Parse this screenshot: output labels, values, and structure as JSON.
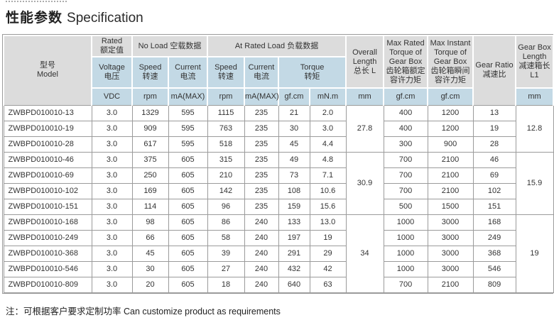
{
  "title": {
    "zh": "性能参数",
    "en": "Specification"
  },
  "footer": {
    "note": "注：可根据客户要求定制功率 Can customize product as requirements"
  },
  "colors": {
    "header_gray": "#dcdcdc",
    "header_blue": "#c3d9e5",
    "grid": "#9b9b9b",
    "text": "#333333"
  },
  "header": {
    "model": "型号\nModel",
    "rated": "Rated\n额定值",
    "no_load": "No Load 空载数据",
    "at_rated_load": "At Rated Load 负载数据",
    "overall_length": "Overall\nLength\n总长 L",
    "max_rated_torque": "Max Rated\nTorque of\nGear Box\n齿轮箱额定\n容许力矩",
    "max_instant_torque": "Max Instant\nTorque of\nGear Box\n齿轮箱瞬间\n容许力矩",
    "gear_ratio": "Gear Ratio\n减速比",
    "gear_box_length": "Gear Box\nLength\n减速箱长\nL1",
    "voltage": "Voltage\n电压",
    "speed": "Speed\n转速",
    "current": "Current\n电流",
    "torque": "Torque\n转矩",
    "units": {
      "vdc": "VDC",
      "rpm": "rpm",
      "ma_max": "mA(MAX)",
      "gf_cm": "gf.cm",
      "mn_m": "mN.m",
      "mm": "mm"
    }
  },
  "rows": [
    {
      "model": "ZWBPD010010-13",
      "voltage": "3.0",
      "no_load_speed": "1329",
      "no_load_current": "595",
      "rated_speed": "1115",
      "rated_current": "235",
      "torque_gfcm": "21",
      "torque_mnm": "2.0",
      "max_rated_torque": "400",
      "max_instant_torque": "1200",
      "gear_ratio": "13"
    },
    {
      "model": "ZWBPD010010-19",
      "voltage": "3.0",
      "no_load_speed": "909",
      "no_load_current": "595",
      "rated_speed": "763",
      "rated_current": "235",
      "torque_gfcm": "30",
      "torque_mnm": "3.0",
      "max_rated_torque": "400",
      "max_instant_torque": "1200",
      "gear_ratio": "19"
    },
    {
      "model": "ZWBPD010010-28",
      "voltage": "3.0",
      "no_load_speed": "617",
      "no_load_current": "595",
      "rated_speed": "518",
      "rated_current": "235",
      "torque_gfcm": "45",
      "torque_mnm": "4.4",
      "max_rated_torque": "300",
      "max_instant_torque": "900",
      "gear_ratio": "28"
    },
    {
      "model": "ZWBPD010010-46",
      "voltage": "3.0",
      "no_load_speed": "375",
      "no_load_current": "605",
      "rated_speed": "315",
      "rated_current": "235",
      "torque_gfcm": "49",
      "torque_mnm": "4.8",
      "max_rated_torque": "700",
      "max_instant_torque": "2100",
      "gear_ratio": "46"
    },
    {
      "model": "ZWBPD010010-69",
      "voltage": "3.0",
      "no_load_speed": "250",
      "no_load_current": "605",
      "rated_speed": "210",
      "rated_current": "235",
      "torque_gfcm": "73",
      "torque_mnm": "7.1",
      "max_rated_torque": "700",
      "max_instant_torque": "2100",
      "gear_ratio": "69"
    },
    {
      "model": "ZWBPD010010-102",
      "voltage": "3.0",
      "no_load_speed": "169",
      "no_load_current": "605",
      "rated_speed": "142",
      "rated_current": "235",
      "torque_gfcm": "108",
      "torque_mnm": "10.6",
      "max_rated_torque": "700",
      "max_instant_torque": "2100",
      "gear_ratio": "102"
    },
    {
      "model": "ZWBPD010010-151",
      "voltage": "3.0",
      "no_load_speed": "114",
      "no_load_current": "605",
      "rated_speed": "96",
      "rated_current": "235",
      "torque_gfcm": "159",
      "torque_mnm": "15.6",
      "max_rated_torque": "500",
      "max_instant_torque": "1500",
      "gear_ratio": "151"
    },
    {
      "model": "ZWBPD010010-168",
      "voltage": "3.0",
      "no_load_speed": "98",
      "no_load_current": "605",
      "rated_speed": "86",
      "rated_current": "240",
      "torque_gfcm": "133",
      "torque_mnm": "13.0",
      "max_rated_torque": "1000",
      "max_instant_torque": "3000",
      "gear_ratio": "168"
    },
    {
      "model": "ZWBPD010010-249",
      "voltage": "3.0",
      "no_load_speed": "66",
      "no_load_current": "605",
      "rated_speed": "58",
      "rated_current": "240",
      "torque_gfcm": "197",
      "torque_mnm": "19",
      "max_rated_torque": "1000",
      "max_instant_torque": "3000",
      "gear_ratio": "249"
    },
    {
      "model": "ZWBPD010010-368",
      "voltage": "3.0",
      "no_load_speed": "45",
      "no_load_current": "605",
      "rated_speed": "39",
      "rated_current": "240",
      "torque_gfcm": "291",
      "torque_mnm": "29",
      "max_rated_torque": "1000",
      "max_instant_torque": "3000",
      "gear_ratio": "368"
    },
    {
      "model": "ZWBPD010010-546",
      "voltage": "3.0",
      "no_load_speed": "30",
      "no_load_current": "605",
      "rated_speed": "27",
      "rated_current": "240",
      "torque_gfcm": "432",
      "torque_mnm": "42",
      "max_rated_torque": "1000",
      "max_instant_torque": "3000",
      "gear_ratio": "546"
    },
    {
      "model": "ZWBPD010010-809",
      "voltage": "3.0",
      "no_load_speed": "20",
      "no_load_current": "605",
      "rated_speed": "18",
      "rated_current": "240",
      "torque_gfcm": "640",
      "torque_mnm": "63",
      "max_rated_torque": "700",
      "max_instant_torque": "2100",
      "gear_ratio": "809"
    }
  ],
  "groups": [
    {
      "span": 3,
      "overall_length": "27.8",
      "gear_box_length": "12.8"
    },
    {
      "span": 4,
      "overall_length": "30.9",
      "gear_box_length": "15.9"
    },
    {
      "span": 5,
      "overall_length": "34",
      "gear_box_length": "19"
    }
  ]
}
